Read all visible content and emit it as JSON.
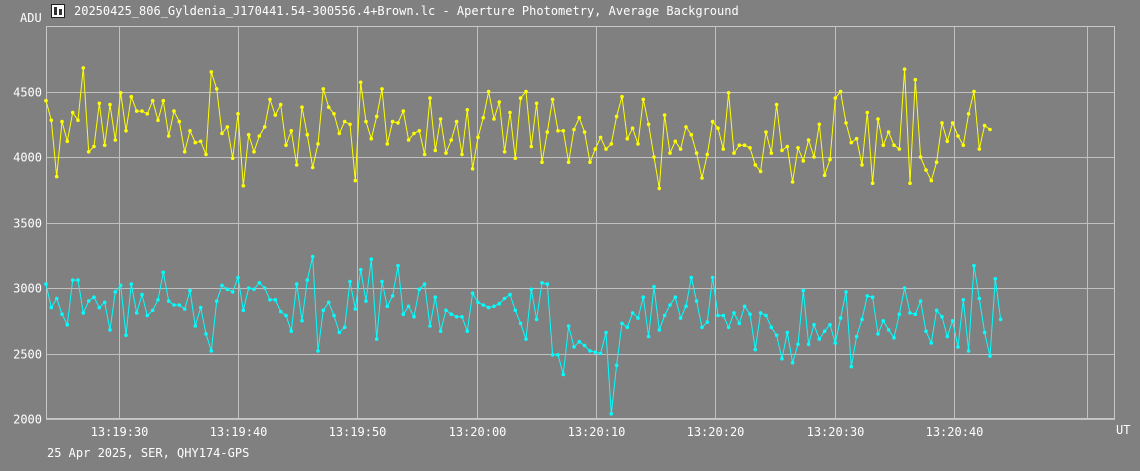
{
  "window": {
    "title": "20250425_806_Gyldenia_J170441.54-300556.4+Brown.lc - Aperture Photometry, Average Background",
    "icon": "chart-app-icon"
  },
  "footer": "25 Apr 2025, SER, QHY174-GPS",
  "chart_data": {
    "type": "line",
    "ylabel": "ADU",
    "xlabel": "UT",
    "ylim": [
      2000,
      5000
    ],
    "xlim": [
      "13:19:23.9",
      "13:20:53.5"
    ],
    "y_ticks": [
      2000,
      2500,
      3000,
      3500,
      4000,
      4500
    ],
    "x_ticks": [
      "13:19:30",
      "13:19:40",
      "13:19:50",
      "13:20:00",
      "13:20:10",
      "13:20:20",
      "13:20:30",
      "13:20:40"
    ],
    "grid": true,
    "background": "#808080",
    "grid_color": "#c0c0c0",
    "sample_interval_s": 0.447,
    "series": [
      {
        "color": "#ffff00",
        "values": [
          4430,
          4280,
          3850,
          4270,
          4120,
          4340,
          4280,
          4680,
          4040,
          4080,
          4410,
          4090,
          4400,
          4130,
          4490,
          4200,
          4460,
          4350,
          4350,
          4330,
          4430,
          4280,
          4430,
          4160,
          4350,
          4270,
          4040,
          4200,
          4110,
          4120,
          4020,
          4650,
          4520,
          4180,
          4230,
          3990,
          4330,
          3780,
          4170,
          4040,
          4160,
          4230,
          4440,
          4320,
          4400,
          4090,
          4200,
          3940,
          4380,
          4170,
          3920,
          4100,
          4520,
          4380,
          4330,
          4180,
          4270,
          4250,
          3820,
          4570,
          4270,
          4140,
          4310,
          4520,
          4100,
          4270,
          4260,
          4350,
          4130,
          4180,
          4200,
          4020,
          4450,
          4050,
          4290,
          4030,
          4130,
          4270,
          4020,
          4360,
          3910,
          4150,
          4300,
          4500,
          4290,
          4420,
          4040,
          4340,
          3990,
          4450,
          4500,
          4080,
          4410,
          3960,
          4190,
          4440,
          4200,
          4200,
          3960,
          4210,
          4300,
          4190,
          3960,
          4060,
          4150,
          4060,
          4100,
          4310,
          4460,
          4140,
          4220,
          4100,
          4440,
          4250,
          4000,
          3760,
          4320,
          4030,
          4120,
          4060,
          4230,
          4170,
          4030,
          3840,
          4020,
          4270,
          4220,
          4060,
          4490,
          4030,
          4090,
          4090,
          4070,
          3940,
          3890,
          4190,
          4030,
          4400,
          4050,
          4080,
          3810,
          4070,
          3970,
          4130,
          4000,
          4250,
          3860,
          3980,
          4450,
          4500,
          4260,
          4110,
          4140,
          3940,
          4340,
          3800,
          4290,
          4090,
          4190,
          4090,
          4060,
          4670,
          3800,
          4590,
          4000,
          3900,
          3820,
          3960,
          4260,
          4120,
          4260,
          4160,
          4090,
          4330,
          4500,
          4060,
          4240,
          4210
        ]
      },
      {
        "color": "#00ffff",
        "values": [
          3030,
          2850,
          2920,
          2800,
          2720,
          3060,
          3060,
          2810,
          2900,
          2930,
          2850,
          2890,
          2680,
          2970,
          3020,
          2640,
          3030,
          2810,
          2950,
          2790,
          2830,
          2910,
          3120,
          2900,
          2870,
          2870,
          2840,
          2980,
          2710,
          2850,
          2650,
          2520,
          2900,
          3020,
          2990,
          2970,
          3080,
          2830,
          3000,
          2990,
          3040,
          3000,
          2910,
          2910,
          2820,
          2790,
          2670,
          3030,
          2750,
          3060,
          3240,
          2520,
          2830,
          2890,
          2790,
          2660,
          2700,
          3050,
          2840,
          3140,
          2900,
          3220,
          2610,
          3050,
          2860,
          2940,
          3170,
          2800,
          2860,
          2780,
          2990,
          3030,
          2710,
          2930,
          2670,
          2830,
          2800,
          2780,
          2780,
          2670,
          2960,
          2890,
          2870,
          2850,
          2860,
          2880,
          2920,
          2950,
          2830,
          2730,
          2610,
          2990,
          2760,
          3040,
          3030,
          2490,
          2490,
          2340,
          2710,
          2550,
          2590,
          2560,
          2520,
          2510,
          2500,
          2660,
          2040,
          2410,
          2730,
          2700,
          2810,
          2770,
          2930,
          2630,
          3010,
          2680,
          2790,
          2870,
          2930,
          2770,
          2860,
          3080,
          2900,
          2700,
          2740,
          3080,
          2790,
          2790,
          2700,
          2810,
          2730,
          2860,
          2800,
          2530,
          2810,
          2790,
          2700,
          2640,
          2460,
          2660,
          2430,
          2570,
          2980,
          2570,
          2720,
          2610,
          2670,
          2720,
          2580,
          2770,
          2970,
          2400,
          2630,
          2760,
          2940,
          2930,
          2650,
          2750,
          2680,
          2620,
          2800,
          3000,
          2810,
          2800,
          2900,
          2670,
          2580,
          2830,
          2780,
          2630,
          2750,
          2550,
          2910,
          2520,
          3170,
          2920,
          2660,
          2480,
          3070,
          2760
        ]
      }
    ]
  }
}
